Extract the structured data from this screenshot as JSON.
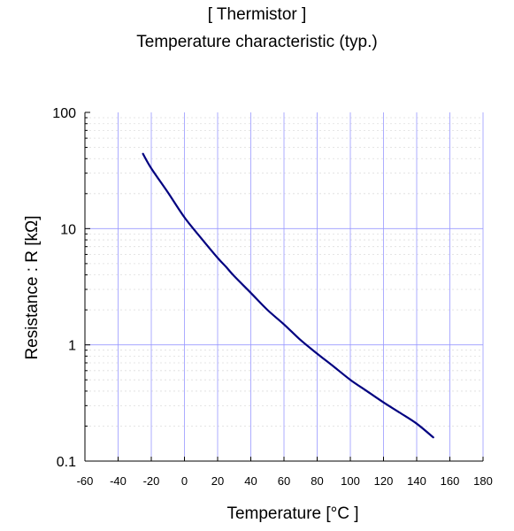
{
  "header": {
    "title_line1": "[ Thermistor ]",
    "title_line2": "Temperature characteristic (typ.)"
  },
  "chart_data": {
    "type": "line",
    "title": "[ Thermistor ] Temperature characteristic (typ.)",
    "xlabel": "Temperature  [°C ]",
    "ylabel": "Resistance : R [kΩ]",
    "xlim": [
      -60,
      180
    ],
    "ylim": [
      0.1,
      100
    ],
    "yscale": "log",
    "grid": true,
    "x_ticks": [
      -60,
      -40,
      -20,
      0,
      20,
      40,
      60,
      80,
      100,
      120,
      140,
      160,
      180
    ],
    "y_ticks": [
      0.1,
      1,
      10,
      100
    ],
    "y_tick_labels": [
      "0.1",
      "1",
      "10",
      "100"
    ],
    "colors": {
      "line": "#000080",
      "grid": "#9999ff",
      "minor_grid": "#dddddd"
    },
    "series": [
      {
        "x": [
          -25,
          -20,
          -10,
          0,
          10,
          20,
          25,
          30,
          40,
          50,
          60,
          70,
          80,
          90,
          100,
          110,
          120,
          130,
          140,
          150
        ],
        "values": [
          44,
          33,
          20.5,
          12.5,
          8.3,
          5.6,
          4.7,
          3.9,
          2.8,
          2.0,
          1.5,
          1.1,
          0.84,
          0.65,
          0.5,
          0.4,
          0.32,
          0.26,
          0.21,
          0.16
        ]
      }
    ]
  }
}
